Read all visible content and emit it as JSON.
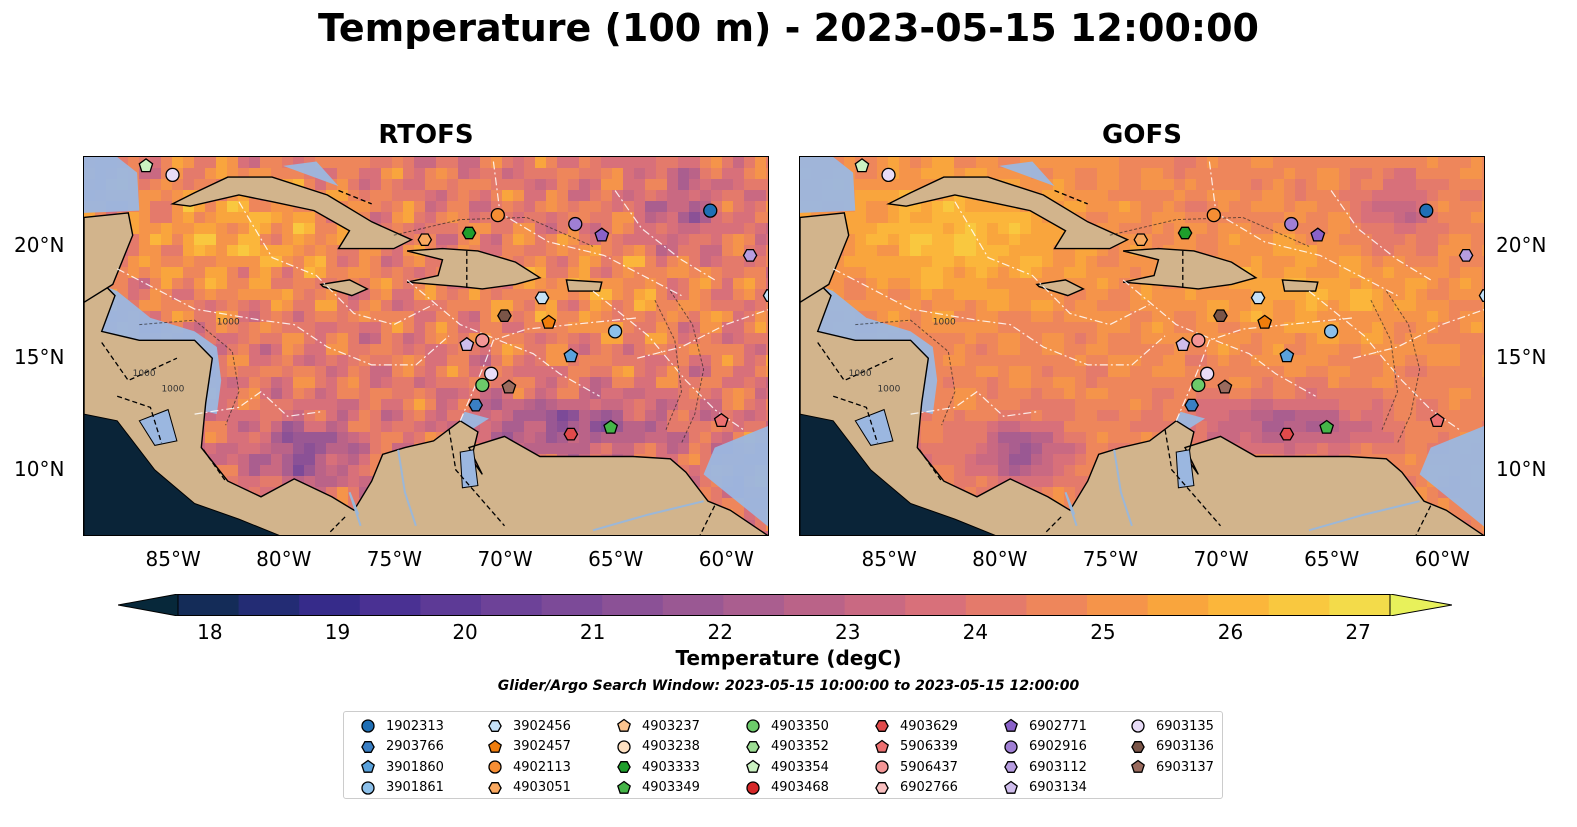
{
  "title": "Temperature (100 m) - 2023-05-15 12:00:00",
  "panels": [
    {
      "title": "RTOFS",
      "variant": "rtofs"
    },
    {
      "title": "GOFS",
      "variant": "gofs"
    }
  ],
  "axes": {
    "lon_ticks": [
      "85°W",
      "80°W",
      "75°W",
      "70°W",
      "65°W",
      "60°W"
    ],
    "lat_ticks": [
      "20°N",
      "15°N",
      "10°N"
    ],
    "lon_range": [
      -89,
      -58
    ],
    "lat_range": [
      7,
      24
    ]
  },
  "colorbar": {
    "label": "Temperature (degC)",
    "ticks": [
      "18",
      "19",
      "20",
      "21",
      "22",
      "23",
      "24",
      "25",
      "26",
      "27"
    ],
    "range": [
      18,
      27
    ],
    "extend": "both",
    "colors": [
      "#07283a",
      "#142c58",
      "#232c74",
      "#362b8a",
      "#4a3193",
      "#5d3a96",
      "#6d4298",
      "#7c4a98",
      "#8b5196",
      "#9a5893",
      "#aa5e8f",
      "#ba6388",
      "#c96982",
      "#d8707a",
      "#e47a6b",
      "#ee865b",
      "#f5944a",
      "#f9a53d",
      "#fbb63b",
      "#f9c83f",
      "#f3db4a",
      "#e8f15b"
    ]
  },
  "contour_label": "1000",
  "search_window": "Glider/Argo Search Window: 2023-05-15 10:00:00 to 2023-05-15 12:00:00",
  "legend": {
    "columns": [
      [
        {
          "id": "1902313",
          "marker": "circle",
          "color": "#1f6fb5"
        },
        {
          "id": "2903766",
          "marker": "hexagon",
          "color": "#3a7fc4"
        },
        {
          "id": "3901860",
          "marker": "pentagon",
          "color": "#5aa2dc"
        },
        {
          "id": "3901861",
          "marker": "circle",
          "color": "#8cc0ea"
        }
      ],
      [
        {
          "id": "3902456",
          "marker": "hexagon",
          "color": "#c5e1f7"
        },
        {
          "id": "3902457",
          "marker": "pentagon",
          "color": "#f07d0c"
        },
        {
          "id": "4902113",
          "marker": "circle",
          "color": "#f68e34"
        },
        {
          "id": "4903051",
          "marker": "hexagon",
          "color": "#f9a85f"
        }
      ],
      [
        {
          "id": "4903237",
          "marker": "pentagon",
          "color": "#fbc48f"
        },
        {
          "id": "4903238",
          "marker": "circle",
          "color": "#fde0c2"
        },
        {
          "id": "4903333",
          "marker": "hexagon",
          "color": "#1f9e2c"
        },
        {
          "id": "4903349",
          "marker": "pentagon",
          "color": "#45b548"
        }
      ],
      [
        {
          "id": "4903350",
          "marker": "circle",
          "color": "#6cca6a"
        },
        {
          "id": "4903352",
          "marker": "hexagon",
          "color": "#9ddd94"
        },
        {
          "id": "4903354",
          "marker": "pentagon",
          "color": "#cbf2c2"
        },
        {
          "id": "4903468",
          "marker": "circle",
          "color": "#d62728"
        }
      ],
      [
        {
          "id": "4903629",
          "marker": "hexagon",
          "color": "#e04a4b"
        },
        {
          "id": "5906339",
          "marker": "pentagon",
          "color": "#ec6f70"
        },
        {
          "id": "5906437",
          "marker": "circle",
          "color": "#f39696"
        },
        {
          "id": "6902766",
          "marker": "hexagon",
          "color": "#f9c0c0"
        }
      ],
      [
        {
          "id": "6902771",
          "marker": "pentagon",
          "color": "#8a62c9"
        },
        {
          "id": "6902916",
          "marker": "circle",
          "color": "#a07fd4"
        },
        {
          "id": "6903112",
          "marker": "hexagon",
          "color": "#b79de0"
        },
        {
          "id": "6903134",
          "marker": "pentagon",
          "color": "#cfbdec"
        }
      ],
      [
        {
          "id": "6903135",
          "marker": "circle",
          "color": "#e8dcf7"
        },
        {
          "id": "6903136",
          "marker": "hexagon",
          "color": "#7a5548"
        },
        {
          "id": "6903137",
          "marker": "pentagon",
          "color": "#9a6b5e"
        }
      ]
    ]
  },
  "floats": [
    {
      "id": "4903354",
      "lon": -86.2,
      "lat": 23.6
    },
    {
      "id": "6903135",
      "lon": -85.0,
      "lat": 23.2
    },
    {
      "id": "1902313",
      "lon": -60.7,
      "lat": 21.6
    },
    {
      "id": "4902113",
      "lon": -70.3,
      "lat": 21.4
    },
    {
      "id": "6902916",
      "lon": -66.8,
      "lat": 21.0
    },
    {
      "id": "4903333",
      "lon": -71.6,
      "lat": 20.6
    },
    {
      "id": "6902771",
      "lon": -65.6,
      "lat": 20.5
    },
    {
      "id": "4903051",
      "lon": -73.6,
      "lat": 20.3
    },
    {
      "id": "6903112",
      "lon": -58.9,
      "lat": 19.6
    },
    {
      "id": "3902456",
      "lon": -68.3,
      "lat": 17.7
    },
    {
      "id": "3902456",
      "lon": -58.0,
      "lat": 17.8
    },
    {
      "id": "6903136",
      "lon": -70.0,
      "lat": 16.9
    },
    {
      "id": "3902457",
      "lon": -68.0,
      "lat": 16.6
    },
    {
      "id": "3901861",
      "lon": -65.0,
      "lat": 16.2
    },
    {
      "id": "5906437",
      "lon": -71.0,
      "lat": 15.8
    },
    {
      "id": "6903134",
      "lon": -71.7,
      "lat": 15.6
    },
    {
      "id": "3901860",
      "lon": -67.0,
      "lat": 15.1
    },
    {
      "id": "6903135",
      "lon": -70.6,
      "lat": 14.3
    },
    {
      "id": "4903350",
      "lon": -71.0,
      "lat": 13.8
    },
    {
      "id": "6903137",
      "lon": -69.8,
      "lat": 13.7
    },
    {
      "id": "2903766",
      "lon": -71.3,
      "lat": 12.9
    },
    {
      "id": "5906339",
      "lon": -60.2,
      "lat": 12.2
    },
    {
      "id": "4903349",
      "lon": -65.2,
      "lat": 11.9
    },
    {
      "id": "4903629",
      "lon": -67.0,
      "lat": 11.6
    }
  ]
}
